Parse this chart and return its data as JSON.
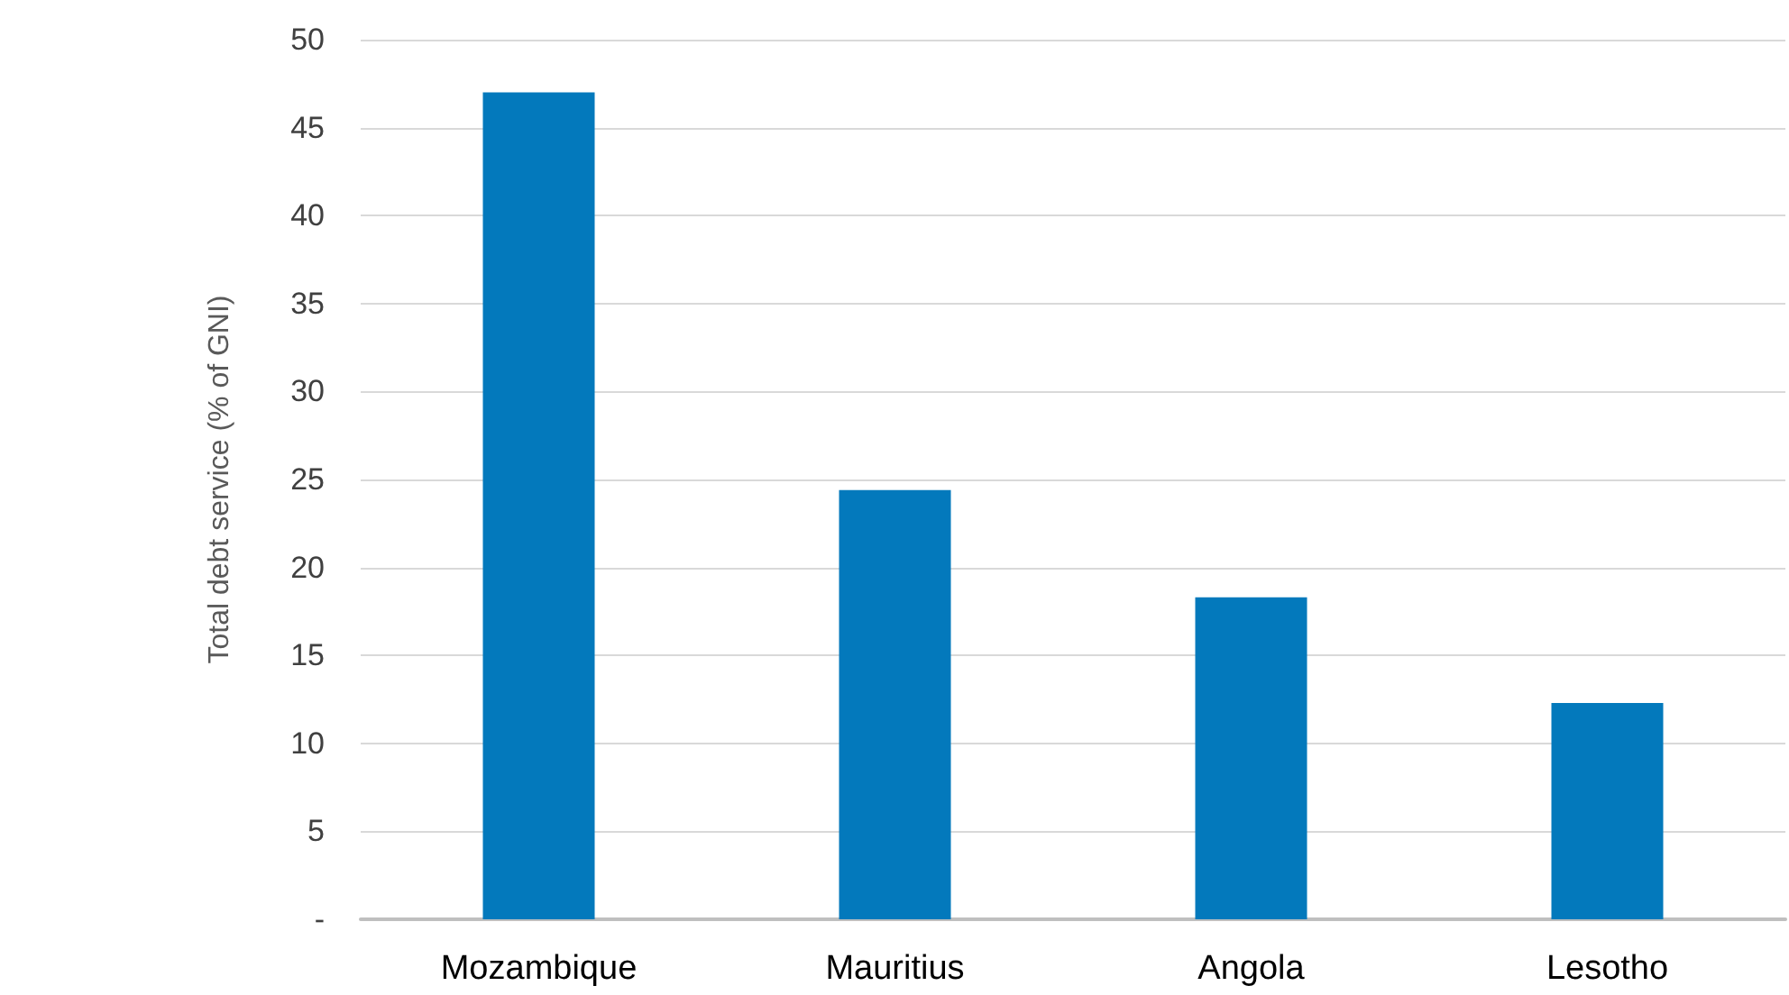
{
  "chart_data": {
    "type": "bar",
    "ylabel": "Total debt service (% of GNI)",
    "categories": [
      "Mozambique",
      "Mauritius",
      "Angola",
      "Lesotho"
    ],
    "values": [
      47,
      24.4,
      18.3,
      12.3
    ],
    "color": "#0379bc",
    "ylim": [
      0,
      50
    ],
    "yticks": [
      {
        "value": 0,
        "label": "-"
      },
      5,
      10,
      15,
      20,
      25,
      30,
      35,
      40,
      45,
      50
    ],
    "grid": "y"
  }
}
